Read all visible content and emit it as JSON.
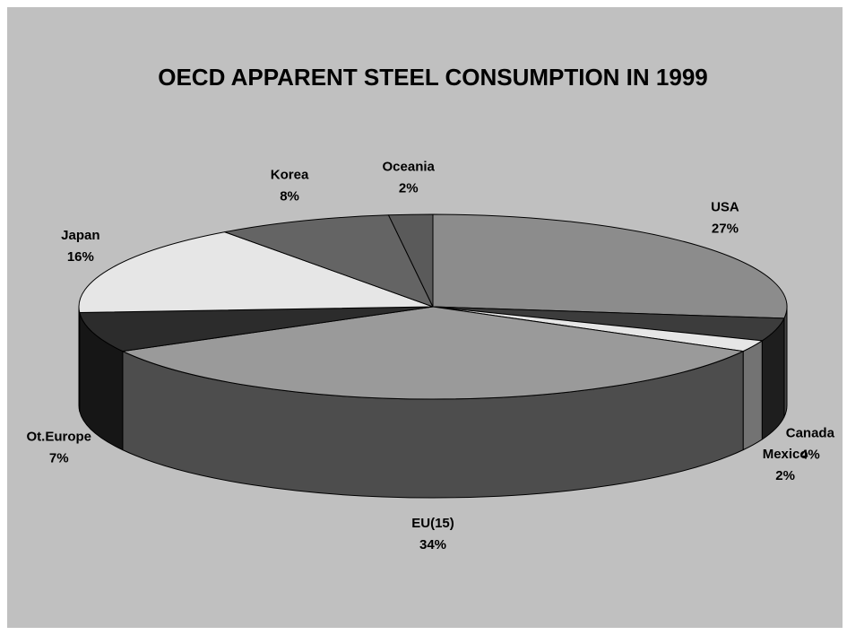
{
  "chart_data": {
    "type": "pie3d",
    "title": "OECD APPARENT STEEL CONSUMPTION IN 1999",
    "categories": [
      "USA",
      "Canada",
      "Mexico",
      "EU(15)",
      "Ot.Europe",
      "Japan",
      "Korea",
      "Oceania"
    ],
    "values": [
      27,
      4,
      2,
      34,
      7,
      16,
      8,
      2
    ],
    "value_labels": [
      "27%",
      "4%",
      "2%",
      "34%",
      "7%",
      "16%",
      "8%",
      "2%"
    ],
    "colors": [
      "#8c8c8c",
      "#3c3c3c",
      "#e6e6e6",
      "#9a9a9a",
      "#2c2c2c",
      "#e6e6e6",
      "#646464",
      "#5a5a5a"
    ]
  }
}
